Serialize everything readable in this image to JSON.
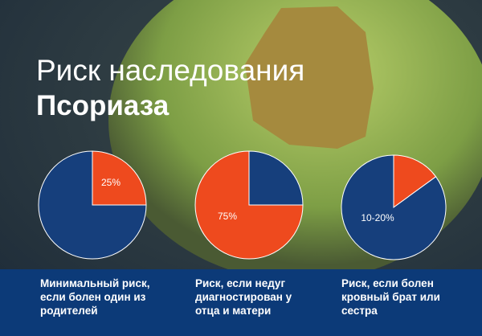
{
  "header": {
    "title": "Риск наследования",
    "subtitle": "Псориаза"
  },
  "chart_data": [
    {
      "type": "pie",
      "title": "Минимальный риск, если болен один из родителей",
      "values": [
        25,
        75
      ],
      "value_labels": [
        "25%",
        null
      ],
      "colors": [
        "#ee4a1e",
        "#163f7c"
      ]
    },
    {
      "type": "pie",
      "title": "Риск, если недуг диагностирован у отца и матери",
      "values": [
        25,
        75
      ],
      "value_labels": [
        null,
        "75%"
      ],
      "colors": [
        "#163f7c",
        "#ee4a1e"
      ]
    },
    {
      "type": "pie",
      "title": "Риск, если болен кровный брат или сестра",
      "values": [
        15,
        85
      ],
      "value_labels": [
        "10-20%",
        null
      ],
      "colors": [
        "#ee4a1e",
        "#163f7c"
      ]
    }
  ]
}
